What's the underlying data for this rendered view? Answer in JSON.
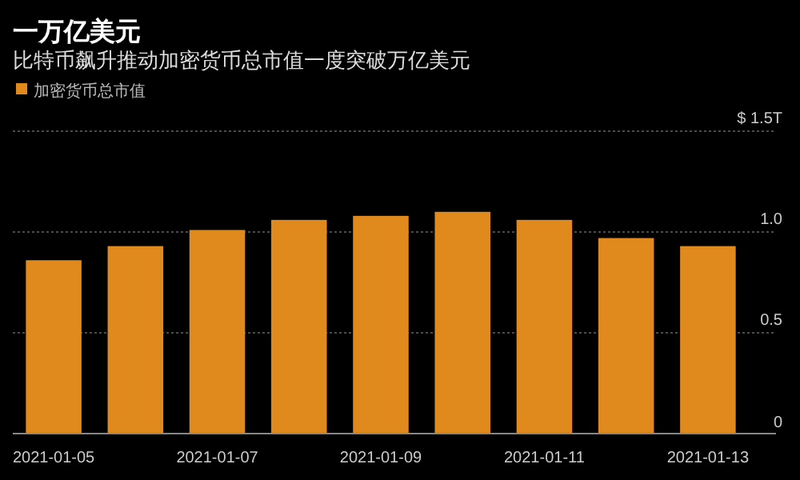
{
  "chart_data": {
    "type": "bar",
    "title": "一万亿美元",
    "subtitle": "比特币飙升推动加密货币总市值一度突破万亿美元",
    "categories": [
      "2021-01-05",
      null,
      "2021-01-07",
      null,
      "2021-01-09",
      null,
      "2021-01-11",
      null,
      "2021-01-13"
    ],
    "series": [
      {
        "name": "加密货币总市值",
        "color": "#e08a1e",
        "values": [
          0.86,
          0.93,
          1.01,
          1.06,
          1.08,
          1.1,
          1.06,
          0.97,
          0.93
        ]
      }
    ],
    "ylim": [
      0,
      1.5
    ],
    "yticks": [
      {
        "value": 0,
        "label": "0"
      },
      {
        "value": 0.5,
        "label": "0.5"
      },
      {
        "value": 1,
        "label": "1.0"
      },
      {
        "value": 1.5,
        "label": "$ 1.5T"
      }
    ],
    "grid": "y",
    "legend": "top left"
  }
}
